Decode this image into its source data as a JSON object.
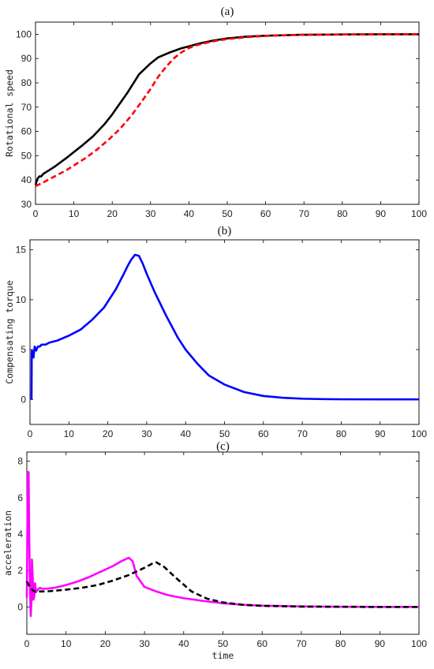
{
  "chart_data": [
    {
      "type": "line",
      "title": "(a)",
      "xlabel": "",
      "ylabel": "Rotational speed",
      "xlim": [
        0,
        100
      ],
      "ylim": [
        30,
        105
      ],
      "xticks": [
        0,
        10,
        20,
        30,
        40,
        50,
        60,
        70,
        80,
        90,
        100
      ],
      "yticks": [
        30,
        40,
        50,
        60,
        70,
        80,
        90,
        100
      ],
      "grid": false,
      "series": [
        {
          "color": "#000000",
          "dash": "solid",
          "x": [
            0,
            0.5,
            1,
            1.5,
            2,
            3,
            5,
            8,
            10,
            12,
            15,
            18,
            20,
            22,
            24,
            26,
            27,
            28,
            30,
            32,
            35,
            38,
            40,
            43,
            46,
            50,
            55,
            60,
            65,
            70,
            80,
            90,
            100
          ],
          "y": [
            38,
            40.5,
            41.5,
            41.5,
            42.5,
            43.5,
            45.5,
            49,
            51.5,
            54,
            58,
            63,
            67,
            71.5,
            76,
            81,
            83.5,
            85,
            88,
            90.5,
            92.5,
            94.2,
            95,
            96.3,
            97.3,
            98.3,
            99,
            99.4,
            99.6,
            99.8,
            99.9,
            100,
            100
          ]
        },
        {
          "color": "#ff0000",
          "dash": "dashed",
          "x": [
            0,
            2,
            5,
            8,
            10,
            13,
            16,
            19,
            22,
            25,
            28,
            30,
            32,
            34,
            36,
            38,
            40,
            42,
            44,
            47,
            50,
            55,
            60,
            65,
            70,
            80,
            90,
            100
          ],
          "y": [
            37.5,
            39,
            41.5,
            44,
            46,
            49,
            52.5,
            56.5,
            61,
            66.5,
            73,
            77.5,
            82.5,
            86.5,
            90,
            92.5,
            94.3,
            95.5,
            96.3,
            97.3,
            98,
            98.8,
            99.3,
            99.6,
            99.8,
            99.9,
            100,
            100
          ]
        }
      ]
    },
    {
      "type": "line",
      "title": "(b)",
      "xlabel": "",
      "ylabel": "Compensating torque",
      "xlim": [
        0,
        100
      ],
      "ylim": [
        -2.5,
        16
      ],
      "xticks": [
        0,
        10,
        20,
        30,
        40,
        50,
        60,
        70,
        80,
        90,
        100
      ],
      "yticks": [
        0,
        5,
        10,
        15
      ],
      "grid": false,
      "series": [
        {
          "color": "#0000ff",
          "dash": "solid",
          "x": [
            0.4,
            0.45,
            0.5,
            0.9,
            1.2,
            1.6,
            2.0,
            2.5,
            3.0,
            4,
            5,
            7,
            10,
            13,
            16,
            19,
            22,
            24,
            25,
            26,
            27,
            28,
            29,
            30,
            32,
            35,
            38,
            40,
            43,
            46,
            50,
            55,
            60,
            65,
            70,
            75,
            80,
            90,
            100
          ],
          "y": [
            0,
            4.6,
            4.9,
            4.2,
            5.3,
            4.9,
            5.3,
            5.3,
            5.5,
            5.5,
            5.7,
            5.9,
            6.4,
            7.0,
            8.0,
            9.2,
            11.0,
            12.5,
            13.3,
            14.0,
            14.5,
            14.4,
            13.6,
            12.6,
            10.8,
            8.4,
            6.2,
            5.0,
            3.6,
            2.4,
            1.5,
            0.75,
            0.35,
            0.17,
            0.08,
            0.04,
            0.02,
            0.01,
            0.01
          ]
        }
      ]
    },
    {
      "type": "line",
      "title": "(c)",
      "xlabel": "time",
      "ylabel": "acceleration",
      "xlim": [
        0,
        100
      ],
      "ylim": [
        -1.5,
        8.5
      ],
      "xticks": [
        0,
        10,
        20,
        30,
        40,
        50,
        60,
        70,
        80,
        90,
        100
      ],
      "yticks": [
        0,
        2,
        4,
        6,
        8
      ],
      "grid": false,
      "series": [
        {
          "color": "#ff00ff",
          "dash": "solid",
          "x": [
            0,
            0.25,
            0.35,
            0.45,
            0.6,
            0.8,
            1.0,
            1.2,
            1.3,
            1.5,
            1.7,
            1.9,
            2.1,
            2.3,
            2.6,
            3.0,
            3.4,
            3.8,
            4.2,
            5,
            7,
            10,
            13,
            16,
            19,
            22,
            24,
            25,
            26,
            27,
            28,
            30,
            33,
            36,
            40,
            45,
            50,
            55,
            60,
            70,
            80,
            90,
            100
          ],
          "y": [
            0.5,
            7.4,
            7.4,
            7.4,
            4.0,
            1.0,
            -0.5,
            0.4,
            2.6,
            1.6,
            0.4,
            0.6,
            1.3,
            0.8,
            0.9,
            1.0,
            1.05,
            1.0,
            1.0,
            1.0,
            1.05,
            1.2,
            1.4,
            1.65,
            1.95,
            2.25,
            2.5,
            2.6,
            2.7,
            2.5,
            1.7,
            1.1,
            0.85,
            0.65,
            0.48,
            0.33,
            0.2,
            0.12,
            0.07,
            0.03,
            0.01,
            0,
            0
          ]
        },
        {
          "color": "#000000",
          "dash": "dashed",
          "x": [
            0,
            1,
            2,
            4,
            6,
            10,
            14,
            18,
            22,
            26,
            28,
            30,
            32,
            33,
            35,
            38,
            42,
            46,
            50,
            55,
            60,
            70,
            80,
            90,
            100
          ],
          "y": [
            1.4,
            1.0,
            0.85,
            0.85,
            0.87,
            0.95,
            1.05,
            1.2,
            1.45,
            1.75,
            1.95,
            2.15,
            2.38,
            2.45,
            2.2,
            1.6,
            0.85,
            0.45,
            0.25,
            0.12,
            0.06,
            0.02,
            0.01,
            0,
            0
          ]
        }
      ]
    }
  ]
}
